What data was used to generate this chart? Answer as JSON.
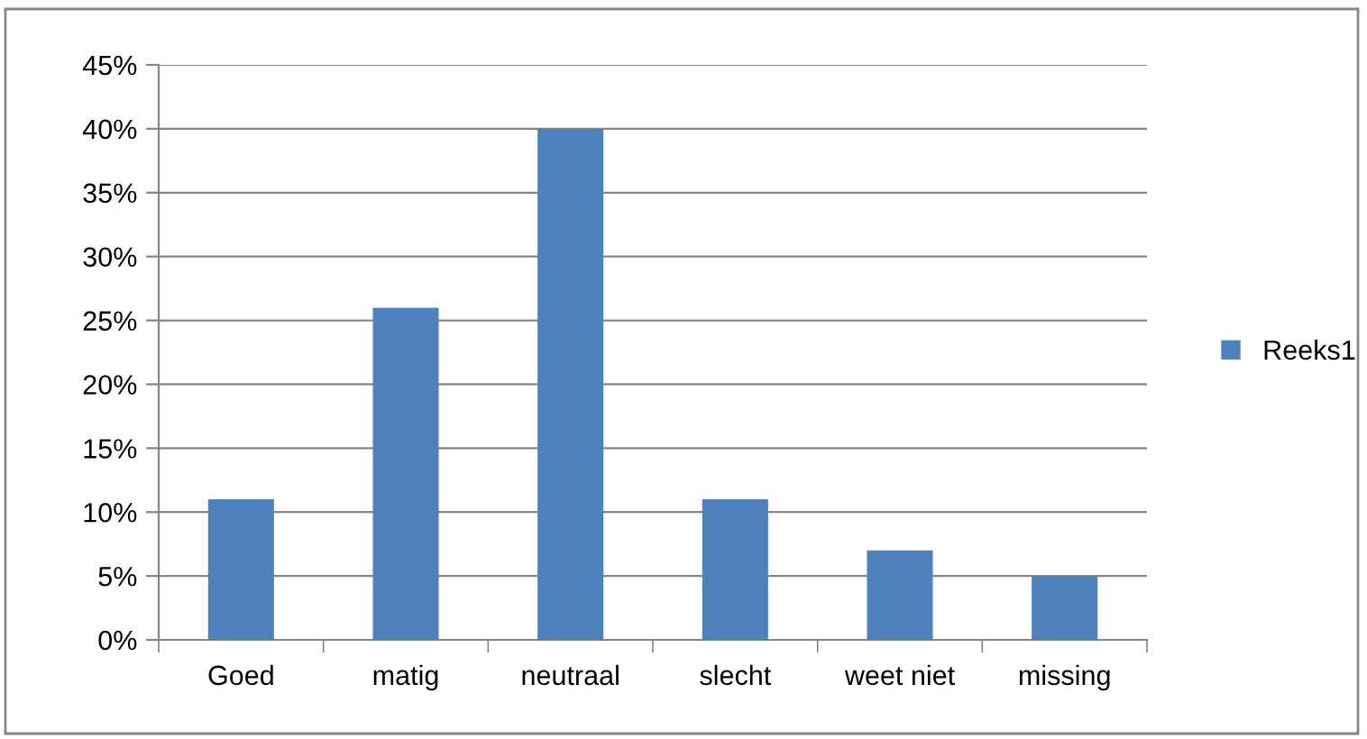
{
  "chart_data": {
    "type": "bar",
    "categories": [
      "Goed",
      "matig",
      "neutraal",
      "slecht",
      "weet niet",
      "missing"
    ],
    "series": [
      {
        "name": "Reeks1",
        "color": "#4f81bd",
        "values": [
          11,
          26,
          40,
          11,
          7,
          5
        ]
      }
    ],
    "ylim": [
      0,
      45
    ],
    "yticks": [
      {
        "value": 0,
        "label": "0%"
      },
      {
        "value": 5,
        "label": "5%"
      },
      {
        "value": 10,
        "label": "10%"
      },
      {
        "value": 15,
        "label": "15%"
      },
      {
        "value": 20,
        "label": "20%"
      },
      {
        "value": 25,
        "label": "25%"
      },
      {
        "value": 30,
        "label": "30%"
      },
      {
        "value": 35,
        "label": "35%"
      },
      {
        "value": 40,
        "label": "40%"
      },
      {
        "value": 45,
        "label": "45%"
      }
    ],
    "grid": "y",
    "legend": "right"
  }
}
